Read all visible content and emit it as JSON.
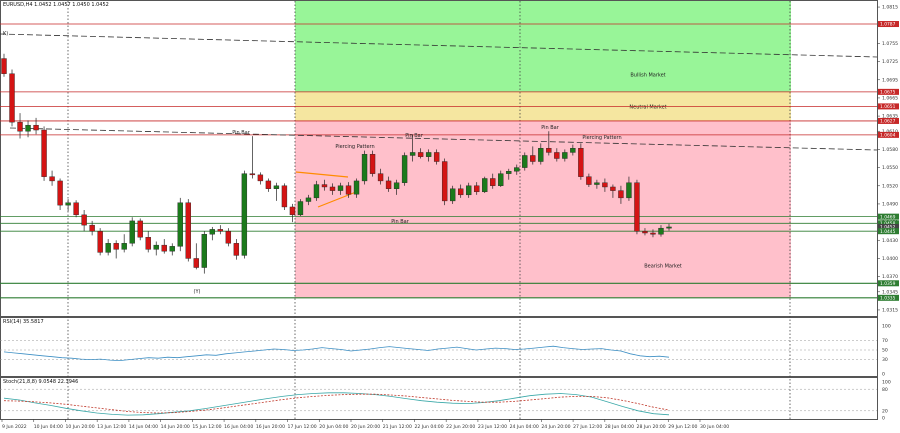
{
  "chart_data": [
    {
      "type": "candlestick",
      "symbol_header": "EURUSD,H4  1.0452 1.0457 1.0450 1.0452",
      "ylim": [
        1.0305,
        1.0825
      ],
      "price_ticks": [
        1.0815,
        1.0785,
        1.0755,
        1.0725,
        1.0695,
        1.0665,
        1.0635,
        1.061,
        1.058,
        1.055,
        1.052,
        1.049,
        1.046,
        1.043,
        1.04,
        1.037,
        1.0345,
        1.0315
      ],
      "x_tick_labels": [
        "9 Jun 2022",
        "10 Jun 04:00",
        "10 Jun 20:00",
        "13 Jun 12:00",
        "14 Jun 04:00",
        "14 Jun 20:00",
        "15 Jun 12:00",
        "16 Jun 04:00",
        "16 Jun 20:00",
        "17 Jun 12:00",
        "20 Jun 04:00",
        "20 Jun 20:00",
        "21 Jun 12:00",
        "22 Jun 04:00",
        "22 Jun 20:00",
        "23 Jun 12:00",
        "24 Jun 04:00",
        "24 Jun 20:00",
        "27 Jun 12:00",
        "28 Jun 04:00",
        "28 Jun 20:00",
        "29 Jun 12:00",
        "30 Jun 04:00"
      ],
      "candles_ohlc": [
        [
          1.073,
          1.0738,
          1.07,
          1.0705
        ],
        [
          1.0705,
          1.0712,
          1.0618,
          1.0625
        ],
        [
          1.0625,
          1.064,
          1.0598,
          1.061
        ],
        [
          1.061,
          1.0628,
          1.06,
          1.062
        ],
        [
          1.062,
          1.0632,
          1.0605,
          1.0612
        ],
        [
          1.0612,
          1.0618,
          1.0528,
          1.0535
        ],
        [
          1.0535,
          1.0545,
          1.052,
          1.0528
        ],
        [
          1.0528,
          1.0532,
          1.048,
          1.0488
        ],
        [
          1.0488,
          1.0498,
          1.0478,
          1.0492
        ],
        [
          1.0492,
          1.0496,
          1.0468,
          1.0472
        ],
        [
          1.0472,
          1.048,
          1.0445,
          1.0455
        ],
        [
          1.0455,
          1.0462,
          1.0438,
          1.0445
        ],
        [
          1.0445,
          1.045,
          1.0405,
          1.041
        ],
        [
          1.041,
          1.0432,
          1.0405,
          1.0425
        ],
        [
          1.0425,
          1.043,
          1.04,
          1.0415
        ],
        [
          1.0415,
          1.044,
          1.041,
          1.0425
        ],
        [
          1.0425,
          1.0468,
          1.042,
          1.0462
        ],
        [
          1.0462,
          1.0466,
          1.043,
          1.0435
        ],
        [
          1.0435,
          1.0445,
          1.041,
          1.0415
        ],
        [
          1.0415,
          1.0428,
          1.0405,
          1.0422
        ],
        [
          1.0422,
          1.0432,
          1.0408,
          1.0412
        ],
        [
          1.0412,
          1.0425,
          1.0405,
          1.042
        ],
        [
          1.042,
          1.05,
          1.0412,
          1.0492
        ],
        [
          1.0492,
          1.0498,
          1.0395,
          1.04
        ],
        [
          1.04,
          1.0425,
          1.0382,
          1.0385
        ],
        [
          1.0385,
          1.0445,
          1.0375,
          1.044
        ],
        [
          1.044,
          1.0452,
          1.043,
          1.0448
        ],
        [
          1.0448,
          1.0455,
          1.044,
          1.0445
        ],
        [
          1.0445,
          1.045,
          1.042,
          1.0425
        ],
        [
          1.0425,
          1.0432,
          1.0398,
          1.0405
        ],
        [
          1.0405,
          1.0545,
          1.04,
          1.054
        ],
        [
          1.054,
          1.0602,
          1.0532,
          1.0538
        ],
        [
          1.0538,
          1.0542,
          1.0522,
          1.0528
        ],
        [
          1.0528,
          1.0532,
          1.051,
          1.0515
        ],
        [
          1.0515,
          1.0525,
          1.0495,
          1.052
        ],
        [
          1.052,
          1.0524,
          1.048,
          1.0485
        ],
        [
          1.0485,
          1.049,
          1.046,
          1.0472
        ],
        [
          1.0472,
          1.0498,
          1.047,
          1.0494
        ],
        [
          1.0494,
          1.0505,
          1.0488,
          1.05
        ],
        [
          1.05,
          1.0528,
          1.0495,
          1.0522
        ],
        [
          1.0522,
          1.053,
          1.0512,
          1.0518
        ],
        [
          1.0518,
          1.0524,
          1.0505,
          1.0512
        ],
        [
          1.0512,
          1.0525,
          1.0505,
          1.052
        ],
        [
          1.052,
          1.0526,
          1.05,
          1.0506
        ],
        [
          1.0506,
          1.0532,
          1.05,
          1.0528
        ],
        [
          1.0528,
          1.0578,
          1.0522,
          1.0572
        ],
        [
          1.0572,
          1.0578,
          1.0535,
          1.054
        ],
        [
          1.054,
          1.0548,
          1.0522,
          1.0528
        ],
        [
          1.0528,
          1.0535,
          1.051,
          1.0515
        ],
        [
          1.0515,
          1.053,
          1.0505,
          1.0525
        ],
        [
          1.0525,
          1.0575,
          1.052,
          1.057
        ],
        [
          1.057,
          1.0605,
          1.056,
          1.0575
        ],
        [
          1.0575,
          1.0582,
          1.0565,
          1.0568
        ],
        [
          1.0568,
          1.058,
          1.056,
          1.0575
        ],
        [
          1.0575,
          1.058,
          1.0555,
          1.056
        ],
        [
          1.056,
          1.0565,
          1.0488,
          1.0495
        ],
        [
          1.0495,
          1.052,
          1.049,
          1.0515
        ],
        [
          1.0515,
          1.0522,
          1.05,
          1.0505
        ],
        [
          1.0505,
          1.0525,
          1.05,
          1.052
        ],
        [
          1.052,
          1.0526,
          1.0505,
          1.051
        ],
        [
          1.051,
          1.0535,
          1.0508,
          1.0532
        ],
        [
          1.0532,
          1.054,
          1.0515,
          1.052
        ],
        [
          1.052,
          1.0545,
          1.0518,
          1.054
        ],
        [
          1.054,
          1.0548,
          1.053,
          1.0544
        ],
        [
          1.0544,
          1.0555,
          1.0538,
          1.055
        ],
        [
          1.055,
          1.0575,
          1.0545,
          1.057
        ],
        [
          1.057,
          1.0585,
          1.0555,
          1.056
        ],
        [
          1.056,
          1.059,
          1.0555,
          1.0582
        ],
        [
          1.0582,
          1.061,
          1.057,
          1.0575
        ],
        [
          1.0575,
          1.0582,
          1.056,
          1.0565
        ],
        [
          1.0565,
          1.058,
          1.056,
          1.0575
        ],
        [
          1.0575,
          1.0588,
          1.057,
          1.0582
        ],
        [
          1.0582,
          1.059,
          1.053,
          1.0535
        ],
        [
          1.0535,
          1.054,
          1.0518,
          1.0522
        ],
        [
          1.0522,
          1.053,
          1.0515,
          1.0525
        ],
        [
          1.0525,
          1.0532,
          1.051,
          1.0518
        ],
        [
          1.0518,
          1.0522,
          1.05,
          1.0512
        ],
        [
          1.0512,
          1.052,
          1.049,
          1.05
        ],
        [
          1.05,
          1.0535,
          1.0495,
          1.0525
        ],
        [
          1.0525,
          1.053,
          1.044,
          1.0445
        ],
        [
          1.0445,
          1.045,
          1.0438,
          1.0442
        ],
        [
          1.0442,
          1.0448,
          1.0435,
          1.044
        ],
        [
          1.044,
          1.0455,
          1.0436,
          1.045
        ],
        [
          1.045,
          1.0457,
          1.0446,
          1.0452
        ]
      ],
      "price_tags": [
        {
          "price": 1.0787,
          "text": "1.0787",
          "color": "#c62828"
        },
        {
          "price": 1.0675,
          "text": "1.0675",
          "color": "#c62828"
        },
        {
          "price": 1.0651,
          "text": "1.0651",
          "color": "#c62828"
        },
        {
          "price": 1.0627,
          "text": "1.0627",
          "color": "#c62828"
        },
        {
          "price": 1.0604,
          "text": "1.0604",
          "color": "#c62828"
        },
        {
          "price": 1.0469,
          "text": "1.0469",
          "color": "#2e7d32"
        },
        {
          "price": 1.0458,
          "text": "1.0458",
          "color": "#2e7d32"
        },
        {
          "price": 1.0452,
          "text": "1.0452",
          "color": "#444444"
        },
        {
          "price": 1.0445,
          "text": "1.0445",
          "color": "#2e7d32"
        },
        {
          "price": 1.0359,
          "text": "1.0359",
          "color": "#2e7d32"
        },
        {
          "price": 1.0335,
          "text": "1.0335",
          "color": "#2e7d32"
        }
      ],
      "zones": [
        {
          "name": "Bullish Market",
          "from": 1.0675,
          "to": 1.0825,
          "color": "#98f598"
        },
        {
          "name": "Neutral Market",
          "from": 1.0627,
          "to": 1.0675,
          "color": "#f5e6a0"
        },
        {
          "name": "Bearish Market",
          "from": 1.0335,
          "to": 1.0627,
          "color": "#ffc0cb"
        }
      ],
      "annotations": [
        "Pin Bar",
        "Piercing Pattern",
        "Pin Bar",
        "Pin Bar",
        "Piercing Pattern",
        "Pin Bar",
        "(Y)",
        "K)"
      ]
    },
    {
      "type": "line",
      "name": "RSI(14) 35.5817",
      "ylim": [
        0,
        100
      ],
      "levels": [
        "100",
        "70",
        "50",
        "30",
        "0"
      ],
      "values": [
        46,
        44,
        42,
        40,
        38,
        36,
        34,
        33,
        31,
        30,
        31,
        29,
        28,
        30,
        32,
        34,
        33,
        35,
        34,
        36,
        38,
        40,
        39,
        42,
        44,
        46,
        48,
        50,
        52,
        51,
        49,
        50,
        52,
        55,
        53,
        51,
        48,
        50,
        52,
        55,
        57,
        55,
        53,
        51,
        49,
        52,
        54,
        56,
        53,
        50,
        52,
        54,
        53,
        51,
        52,
        54,
        56,
        58,
        55,
        53,
        51,
        52,
        53,
        50,
        48,
        42,
        38,
        36,
        37,
        35
      ]
    },
    {
      "type": "line",
      "name": "Stoch(21,8,8) 9.0548 22.3946",
      "ylim": [
        0,
        100
      ],
      "levels": [
        "100",
        "80",
        "20",
        "0"
      ],
      "series": [
        {
          "values": [
            55,
            50,
            42,
            35,
            27,
            20,
            14,
            10,
            8,
            9,
            12,
            16,
            20,
            26,
            33,
            40,
            47,
            54,
            60,
            65,
            68,
            70,
            70,
            68,
            65,
            60,
            54,
            48,
            44,
            41,
            40,
            43,
            48,
            55,
            62,
            66,
            68,
            65,
            58,
            45,
            32,
            20,
            12,
            9
          ]
        },
        {
          "values": [
            48,
            47,
            45,
            42,
            38,
            33,
            28,
            23,
            18,
            15,
            14,
            15,
            18,
            22,
            27,
            33,
            39,
            45,
            51,
            56,
            60,
            63,
            65,
            66,
            66,
            64,
            61,
            57,
            53,
            49,
            46,
            44,
            44,
            46,
            50,
            54,
            58,
            60,
            60,
            56,
            49,
            40,
            30,
            22
          ]
        }
      ]
    }
  ]
}
